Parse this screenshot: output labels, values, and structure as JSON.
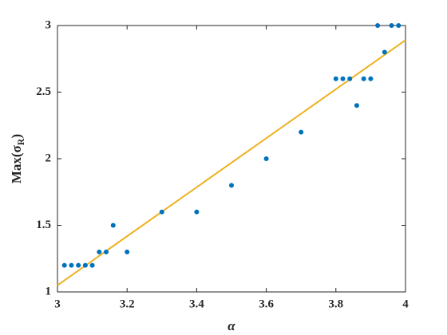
{
  "chart_data": {
    "type": "scatter",
    "xlabel": "α",
    "ylabel": {
      "text": "Max(σ",
      "sub": "R",
      "end": ")"
    },
    "series": [
      {
        "color": "#0072bd",
        "x": [
          3.02,
          3.04,
          3.06,
          3.08,
          3.1,
          3.12,
          3.14,
          3.16,
          3.2,
          3.3,
          3.4,
          3.5,
          3.6,
          3.7,
          3.8,
          3.82,
          3.84,
          3.86,
          3.88,
          3.9,
          3.92,
          3.94,
          3.96,
          3.98
        ],
        "values": [
          1.2,
          1.2,
          1.2,
          1.2,
          1.2,
          1.3,
          1.3,
          1.5,
          1.3,
          1.6,
          1.6,
          1.8,
          2.0,
          2.2,
          2.6,
          2.6,
          2.6,
          2.4,
          2.6,
          2.6,
          3.0,
          2.8,
          3.0,
          3.0
        ]
      }
    ],
    "fit_line": {
      "color": "#edb120",
      "x": [
        3,
        4
      ],
      "values": [
        1.05,
        2.89
      ]
    },
    "xlim": [
      3,
      4
    ],
    "xticks": [
      3,
      3.2,
      3.4,
      3.6,
      3.8,
      4
    ],
    "ylim": [
      1,
      3
    ],
    "yticks": [
      1,
      1.5,
      2,
      2.5,
      3
    ],
    "grid": false
  }
}
